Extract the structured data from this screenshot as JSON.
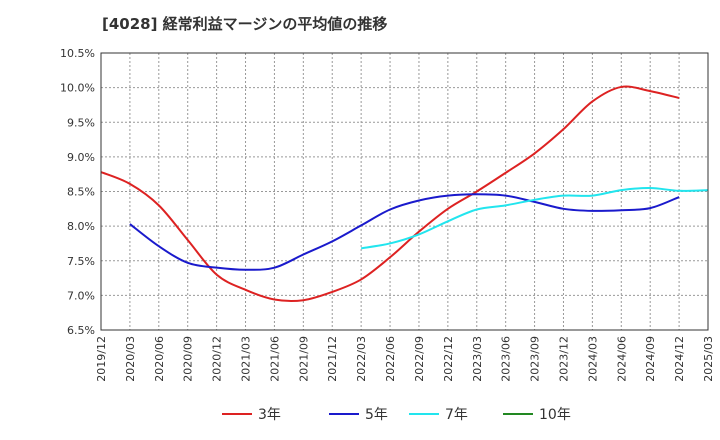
{
  "title": "[4028]  経常利益マージンの平均値の推移",
  "chart_data": {
    "type": "line",
    "ylim": [
      6.5,
      10.5
    ],
    "y_ticks": [
      "6.5%",
      "7.0%",
      "7.5%",
      "8.0%",
      "8.5%",
      "9.0%",
      "9.5%",
      "10.0%",
      "10.5%"
    ],
    "y_tick_values": [
      6.5,
      7.0,
      7.5,
      8.0,
      8.5,
      9.0,
      9.5,
      10.0,
      10.5
    ],
    "x_ticks": [
      "2019/12",
      "2020/03",
      "2020/06",
      "2020/09",
      "2020/12",
      "2021/03",
      "2021/06",
      "2021/09",
      "2021/12",
      "2022/03",
      "2022/06",
      "2022/09",
      "2022/12",
      "2023/03",
      "2023/06",
      "2023/09",
      "2023/12",
      "2024/03",
      "2024/06",
      "2024/09",
      "2024/12",
      "2025/03"
    ],
    "grid": true,
    "legend_position": "bottom",
    "series": [
      {
        "name": "3年",
        "color": "#dd2222",
        "start_index": 0,
        "values": [
          8.78,
          8.61,
          8.3,
          7.8,
          7.3,
          7.08,
          6.94,
          6.93,
          7.05,
          7.23,
          7.55,
          7.92,
          8.25,
          8.5,
          8.77,
          9.05,
          9.4,
          9.8,
          10.01,
          9.95,
          9.85
        ]
      },
      {
        "name": "5年",
        "color": "#1a1acc",
        "start_index": 1,
        "values": [
          8.03,
          7.71,
          7.47,
          7.4,
          7.37,
          7.4,
          7.59,
          7.78,
          8.01,
          8.24,
          8.37,
          8.44,
          8.46,
          8.44,
          8.35,
          8.25,
          8.22,
          8.23,
          8.26,
          8.42
        ]
      },
      {
        "name": "7年",
        "color": "#22e5ee",
        "start_index": 9,
        "values": [
          7.68,
          7.75,
          7.88,
          8.07,
          8.24,
          8.3,
          8.38,
          8.44,
          8.44,
          8.52,
          8.55,
          8.51,
          8.52
        ]
      },
      {
        "name": "10年",
        "color": "#228822",
        "start_index": 0,
        "values": []
      }
    ]
  }
}
